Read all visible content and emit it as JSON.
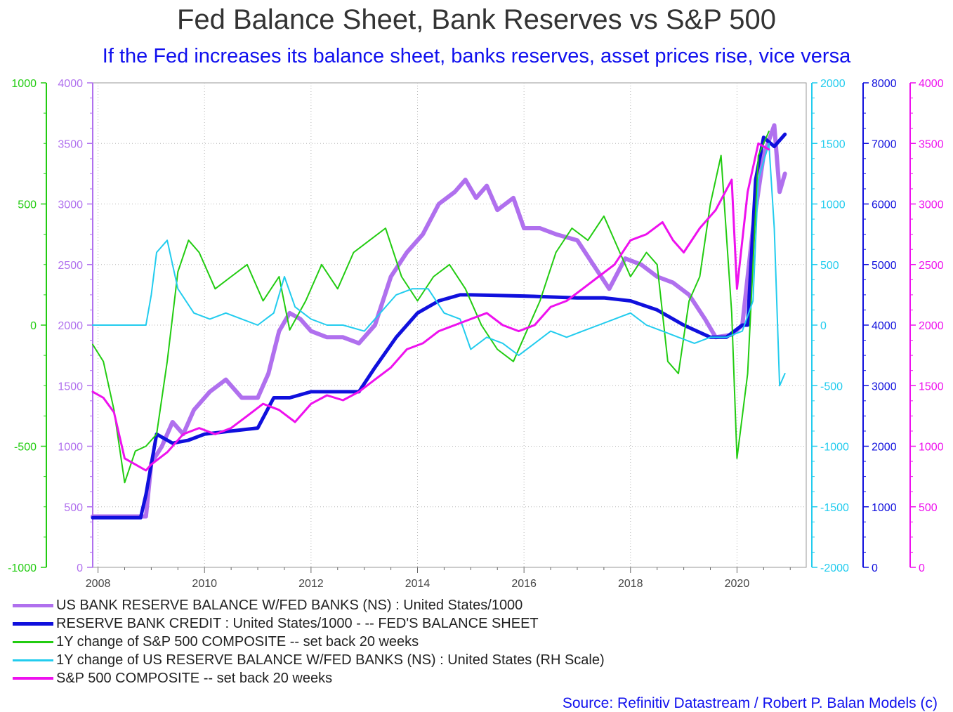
{
  "title": "Fed Balance Sheet, Bank Reserves vs S&P 500",
  "subtitle": "If the Fed increases its balance sheet, banks reserves, asset prices rise, vice versa",
  "source": "Source: Refinitiv Datastream / Robert P. Balan Models (c)",
  "colors": {
    "subtitle": "#1010ee",
    "source": "#1010ee",
    "green": "#22cc11",
    "violet": "#b070ee",
    "cyan": "#22ccee",
    "blue": "#1010dd",
    "magenta": "#ee11ee",
    "grid": "#b5b5b5",
    "title": "#333333"
  },
  "chart_data": {
    "type": "line",
    "x_ticks": [
      "2008",
      "2010",
      "2012",
      "2014",
      "2016",
      "2018",
      "2020"
    ],
    "xlim": [
      2007.9,
      2021.3
    ],
    "axes": [
      {
        "id": "green",
        "side": "left",
        "color": "#22cc11",
        "ylim": [
          -1000,
          1000
        ],
        "ticks": [
          "-1000",
          "-500",
          "0",
          "500",
          "1000"
        ]
      },
      {
        "id": "violet",
        "side": "left",
        "color": "#b070ee",
        "ylim": [
          0,
          4000
        ],
        "ticks": [
          "0",
          "500",
          "1000",
          "1500",
          "2000",
          "2500",
          "3000",
          "3500",
          "4000"
        ]
      },
      {
        "id": "cyan",
        "side": "right",
        "color": "#22ccee",
        "ylim": [
          -2000,
          2000
        ],
        "ticks": [
          "-2000",
          "-1500",
          "-1000",
          "-500",
          "0",
          "500",
          "1000",
          "1500",
          "2000"
        ]
      },
      {
        "id": "blue",
        "side": "right",
        "color": "#1010dd",
        "ylim": [
          0,
          8000
        ],
        "ticks": [
          "0",
          "1000",
          "2000",
          "3000",
          "4000",
          "5000",
          "6000",
          "7000",
          "8000"
        ]
      },
      {
        "id": "magenta",
        "side": "right",
        "color": "#ee11ee",
        "ylim": [
          0,
          4000
        ],
        "ticks": [
          "0",
          "500",
          "1000",
          "1500",
          "2000",
          "2500",
          "3000",
          "3500",
          "4000"
        ]
      }
    ],
    "series": [
      {
        "name": "US BANK RESERVE BALANCE W/FED BANKS (NS) : United States/1000",
        "axis": "violet",
        "color": "#b070ee",
        "width": 6,
        "x": [
          2007.9,
          2008.9,
          2009.0,
          2009.2,
          2009.4,
          2009.6,
          2009.8,
          2010.1,
          2010.4,
          2010.7,
          2011.0,
          2011.2,
          2011.4,
          2011.6,
          2011.8,
          2012.0,
          2012.3,
          2012.6,
          2012.9,
          2013.2,
          2013.5,
          2013.8,
          2014.1,
          2014.4,
          2014.7,
          2014.9,
          2015.1,
          2015.3,
          2015.5,
          2015.8,
          2016.0,
          2016.3,
          2016.6,
          2017.0,
          2017.3,
          2017.6,
          2017.9,
          2018.2,
          2018.5,
          2018.8,
          2019.1,
          2019.4,
          2019.6,
          2019.9,
          2020.1,
          2020.3,
          2020.5,
          2020.7,
          2020.8,
          2020.9
        ],
        "y": [
          420,
          420,
          860,
          1000,
          1200,
          1100,
          1300,
          1450,
          1550,
          1400,
          1400,
          1600,
          1950,
          2100,
          2050,
          1950,
          1900,
          1900,
          1850,
          2000,
          2400,
          2600,
          2750,
          3000,
          3100,
          3200,
          3050,
          3150,
          2950,
          3050,
          2800,
          2800,
          2750,
          2700,
          2500,
          2300,
          2550,
          2500,
          2400,
          2350,
          2250,
          2050,
          1900,
          1920,
          2000,
          2800,
          3400,
          3650,
          3100,
          3250
        ]
      },
      {
        "name": "RESERVE BANK CREDIT : United States/1000 - -- FED'S BALANCE SHEET",
        "axis": "blue",
        "color": "#1010dd",
        "width": 5,
        "x": [
          2007.9,
          2008.8,
          2008.9,
          2009.1,
          2009.4,
          2009.7,
          2010.0,
          2010.5,
          2011.0,
          2011.3,
          2011.6,
          2012.0,
          2012.5,
          2012.9,
          2013.2,
          2013.6,
          2014.0,
          2014.4,
          2014.8,
          2015.0,
          2016.0,
          2017.0,
          2017.5,
          2018.0,
          2018.5,
          2019.0,
          2019.5,
          2019.8,
          2020.1,
          2020.2,
          2020.35,
          2020.5,
          2020.7,
          2020.9
        ],
        "y": [
          820,
          820,
          1200,
          2200,
          2050,
          2100,
          2200,
          2250,
          2300,
          2800,
          2800,
          2900,
          2900,
          2900,
          3300,
          3800,
          4200,
          4400,
          4500,
          4500,
          4480,
          4450,
          4450,
          4400,
          4250,
          4000,
          3800,
          3800,
          4000,
          4000,
          6400,
          7100,
          6950,
          7150
        ]
      },
      {
        "name": "1Y change of S&P 500 COMPOSITE -- set back 20 weeks",
        "axis": "green",
        "color": "#22cc11",
        "width": 2,
        "x": [
          2007.9,
          2008.1,
          2008.3,
          2008.5,
          2008.7,
          2008.9,
          2009.1,
          2009.3,
          2009.5,
          2009.7,
          2009.9,
          2010.2,
          2010.5,
          2010.8,
          2011.1,
          2011.4,
          2011.6,
          2011.9,
          2012.2,
          2012.5,
          2012.8,
          2013.1,
          2013.4,
          2013.7,
          2014.0,
          2014.3,
          2014.6,
          2014.9,
          2015.2,
          2015.5,
          2015.8,
          2016.0,
          2016.3,
          2016.6,
          2016.9,
          2017.2,
          2017.5,
          2017.8,
          2018.0,
          2018.3,
          2018.5,
          2018.7,
          2018.9,
          2019.1,
          2019.3,
          2019.5,
          2019.7,
          2019.9,
          2020.0,
          2020.2,
          2020.4,
          2020.6
        ],
        "y": [
          -80,
          -150,
          -350,
          -650,
          -520,
          -500,
          -450,
          -150,
          220,
          350,
          300,
          150,
          200,
          250,
          100,
          200,
          -20,
          100,
          250,
          150,
          300,
          350,
          400,
          200,
          100,
          200,
          250,
          150,
          0,
          -100,
          -150,
          -50,
          100,
          300,
          400,
          350,
          450,
          300,
          200,
          300,
          250,
          -150,
          -200,
          100,
          200,
          500,
          700,
          50,
          -550,
          -200,
          700,
          800
        ]
      },
      {
        "name": "1Y change of US RESERVE BALANCE W/FED BANKS (NS) : United States (RH Scale)",
        "axis": "cyan",
        "color": "#22ccee",
        "width": 2,
        "x": [
          2007.9,
          2008.9,
          2009.0,
          2009.1,
          2009.3,
          2009.5,
          2009.8,
          2010.1,
          2010.4,
          2010.7,
          2011.0,
          2011.3,
          2011.5,
          2011.7,
          2012.0,
          2012.3,
          2012.6,
          2013.0,
          2013.3,
          2013.6,
          2013.9,
          2014.2,
          2014.5,
          2014.8,
          2015.0,
          2015.3,
          2015.6,
          2015.9,
          2016.2,
          2016.5,
          2016.8,
          2017.1,
          2017.4,
          2017.7,
          2018.0,
          2018.3,
          2018.6,
          2018.9,
          2019.2,
          2019.5,
          2019.8,
          2020.1,
          2020.3,
          2020.4,
          2020.6,
          2020.7,
          2020.8,
          2020.9
        ],
        "y": [
          0,
          0,
          250,
          600,
          700,
          300,
          100,
          50,
          100,
          50,
          0,
          100,
          400,
          150,
          50,
          0,
          0,
          -50,
          100,
          250,
          300,
          300,
          100,
          50,
          -200,
          -100,
          -150,
          -250,
          -150,
          -50,
          -100,
          -50,
          0,
          50,
          100,
          0,
          -50,
          -100,
          -150,
          -100,
          -100,
          -50,
          200,
          1200,
          1500,
          800,
          -500,
          -400
        ]
      },
      {
        "name": "S&P 500 COMPOSITE -- set back 20 weeks",
        "axis": "magenta",
        "color": "#ee11ee",
        "width": 3,
        "x": [
          2007.9,
          2008.1,
          2008.3,
          2008.5,
          2008.7,
          2008.9,
          2009.0,
          2009.3,
          2009.6,
          2009.9,
          2010.2,
          2010.5,
          2010.8,
          2011.1,
          2011.4,
          2011.7,
          2012.0,
          2012.3,
          2012.6,
          2012.9,
          2013.2,
          2013.5,
          2013.8,
          2014.1,
          2014.4,
          2014.7,
          2015.0,
          2015.3,
          2015.6,
          2015.9,
          2016.2,
          2016.5,
          2016.8,
          2017.1,
          2017.4,
          2017.7,
          2018.0,
          2018.3,
          2018.6,
          2018.8,
          2019.0,
          2019.3,
          2019.6,
          2019.9,
          2020.0,
          2020.2,
          2020.4,
          2020.6
        ],
        "y": [
          1450,
          1400,
          1280,
          900,
          850,
          800,
          850,
          950,
          1100,
          1150,
          1100,
          1150,
          1250,
          1350,
          1300,
          1200,
          1350,
          1420,
          1380,
          1450,
          1550,
          1650,
          1800,
          1850,
          1950,
          2000,
          2050,
          2100,
          2000,
          1950,
          2000,
          2150,
          2200,
          2300,
          2400,
          2500,
          2700,
          2750,
          2850,
          2700,
          2600,
          2800,
          2950,
          3200,
          2300,
          3100,
          3500,
          3450
        ]
      }
    ]
  }
}
